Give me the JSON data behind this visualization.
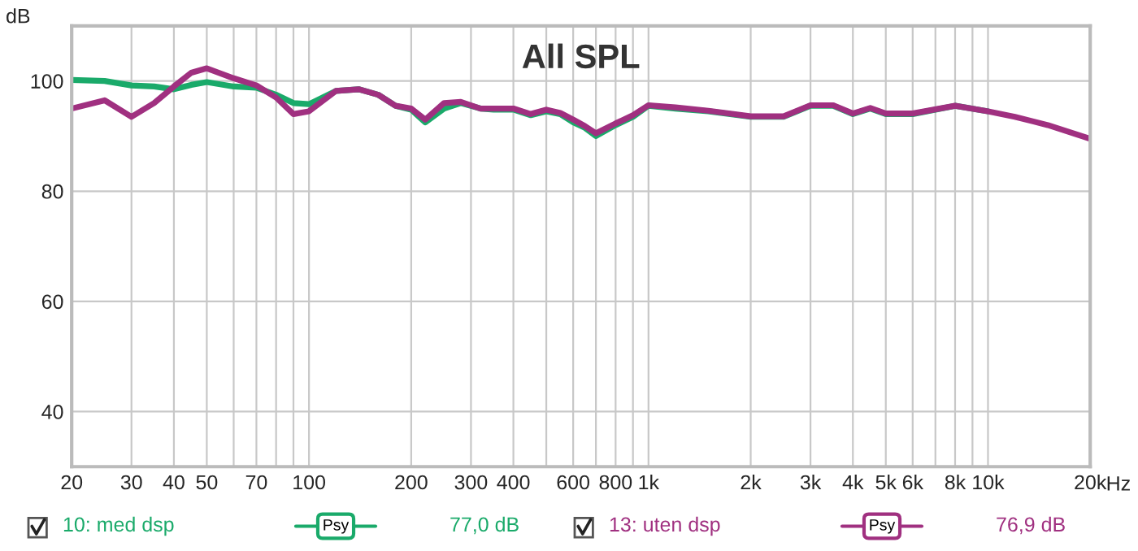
{
  "chart_data": {
    "type": "line",
    "title": "All SPL",
    "ylabel": "dB",
    "log": "x",
    "grid": true,
    "legend": "bottom",
    "line_style": "solid",
    "marker": "none",
    "xlim": [
      20,
      20000
    ],
    "ylim": [
      30,
      110
    ],
    "xticks": [
      20,
      30,
      40,
      50,
      {
        "value": 60,
        "label": null
      },
      70,
      {
        "value": 80,
        "label": null
      },
      {
        "value": 90,
        "label": null
      },
      100,
      200,
      300,
      400,
      {
        "value": 500,
        "label": null
      },
      600,
      {
        "value": 700,
        "label": null
      },
      800,
      {
        "value": 900,
        "label": null
      },
      {
        "value": 1000,
        "label": "1k"
      },
      {
        "value": 2000,
        "label": "2k"
      },
      {
        "value": 3000,
        "label": "3k"
      },
      {
        "value": 4000,
        "label": "4k"
      },
      {
        "value": 5000,
        "label": "5k"
      },
      {
        "value": 6000,
        "label": "6k"
      },
      {
        "value": 7000,
        "label": null
      },
      {
        "value": 8000,
        "label": "8k"
      },
      {
        "value": 9000,
        "label": null
      },
      {
        "value": 10000,
        "label": "10k"
      },
      {
        "value": 20000,
        "label": "20k"
      }
    ],
    "xlabel": "Hz",
    "yticks": [
      40,
      60,
      80,
      100
    ],
    "x": [
      20,
      25,
      30,
      35,
      40,
      45,
      50,
      60,
      70,
      80,
      90,
      100,
      120,
      140,
      160,
      180,
      200,
      220,
      250,
      280,
      320,
      350,
      400,
      450,
      500,
      550,
      600,
      650,
      700,
      800,
      900,
      1000,
      1200,
      1500,
      2000,
      2500,
      3000,
      3500,
      4000,
      4500,
      5000,
      6000,
      8000,
      10000,
      12000,
      15000,
      20000
    ],
    "series": [
      {
        "name": "10: med dsp",
        "color": "#1aaa6a",
        "values": [
          100.2,
          100,
          99.2,
          99,
          98.5,
          99.3,
          99.8,
          99,
          98.8,
          97.5,
          96,
          95.8,
          98.2,
          98.5,
          97.5,
          95.5,
          94.8,
          92.5,
          95,
          96,
          95,
          94.8,
          94.8,
          93.8,
          94.5,
          94,
          92.5,
          91.5,
          90,
          92,
          93.5,
          95.5,
          95,
          94.5,
          93.5,
          93.5,
          95.5,
          95.5,
          94,
          95,
          94,
          94,
          95.5,
          94.5,
          null,
          null,
          null
        ]
      },
      {
        "name": "13: uten dsp",
        "color": "#a03080",
        "values": [
          95,
          96.5,
          93.5,
          96,
          99,
          101.5,
          102.3,
          100.5,
          99.2,
          97,
          94,
          94.5,
          98.2,
          98.5,
          97.5,
          95.5,
          95,
          93,
          96,
          96.2,
          95,
          95,
          95,
          94,
          94.8,
          94.2,
          93,
          91.8,
          90.5,
          92.3,
          93.8,
          95.6,
          95.2,
          94.6,
          93.6,
          93.6,
          95.6,
          95.6,
          94.1,
          95.1,
          94.1,
          94.1,
          95.5,
          94.5,
          93.5,
          92,
          89.5
        ]
      }
    ],
    "annotations": [
      "Psy",
      "77,0 dB",
      "Psy",
      "76,9 dB"
    ]
  }
}
